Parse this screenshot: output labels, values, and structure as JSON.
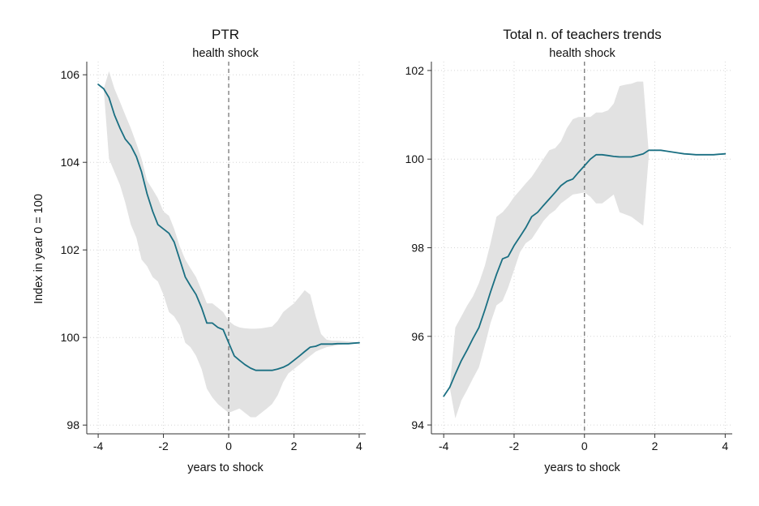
{
  "colors": {
    "series": "#1a6f82",
    "band": "#e2e2e2"
  },
  "chart_data": [
    {
      "type": "line",
      "title": "PTR",
      "subtitle": "health shock",
      "xlabel": "years to shock",
      "ylabel": "Index in year 0 = 100",
      "xlim": [
        -4.35,
        4.2
      ],
      "ylim": [
        97.8,
        106.3
      ],
      "xticks": [
        -4,
        -2,
        0,
        2,
        4
      ],
      "xtick_labels": [
        "-4",
        "-2",
        "0",
        "2",
        "4"
      ],
      "yticks": [
        98,
        100,
        102,
        104,
        106
      ],
      "ytick_labels": [
        "98",
        "100",
        "102",
        "104",
        "106"
      ],
      "reference_x": 0,
      "series": [
        {
          "name": "estimate",
          "x": [
            -4.0,
            -3.83,
            -3.67,
            -3.5,
            -3.33,
            -3.17,
            -3.0,
            -2.83,
            -2.67,
            -2.5,
            -2.33,
            -2.17,
            -2.0,
            -1.83,
            -1.67,
            -1.5,
            -1.33,
            -1.17,
            -1.0,
            -0.83,
            -0.67,
            -0.5,
            -0.33,
            -0.17,
            0.0,
            0.17,
            0.33,
            0.5,
            0.67,
            0.83,
            1.0,
            1.17,
            1.33,
            1.5,
            1.67,
            1.83,
            2.0,
            2.17,
            2.33,
            2.5,
            2.67,
            2.83,
            3.0,
            3.17,
            3.33,
            3.5,
            3.67,
            3.83,
            4.0
          ],
          "y": [
            105.78,
            105.68,
            105.48,
            105.08,
            104.78,
            104.53,
            104.38,
            104.13,
            103.78,
            103.28,
            102.88,
            102.58,
            102.48,
            102.38,
            102.18,
            101.78,
            101.38,
            101.18,
            100.98,
            100.68,
            100.33,
            100.33,
            100.23,
            100.18,
            99.88,
            99.58,
            99.48,
            99.38,
            99.3,
            99.25,
            99.25,
            99.25,
            99.25,
            99.28,
            99.32,
            99.38,
            99.48,
            99.58,
            99.68,
            99.78,
            99.8,
            99.85,
            99.85,
            99.85,
            99.86,
            99.86,
            99.86,
            99.87,
            99.88
          ]
        }
      ],
      "ci_upper": [
        105.78,
        105.68,
        106.08,
        105.68,
        105.38,
        105.08,
        104.78,
        104.43,
        104.08,
        103.58,
        103.38,
        103.18,
        102.88,
        102.78,
        102.48,
        102.08,
        101.78,
        101.58,
        101.38,
        101.08,
        100.78,
        100.78,
        100.68,
        100.58,
        100.38,
        100.28,
        100.23,
        100.21,
        100.2,
        100.2,
        100.21,
        100.23,
        100.25,
        100.38,
        100.58,
        100.68,
        100.78,
        100.93,
        101.08,
        100.98,
        100.48,
        100.08,
        99.95,
        99.93,
        99.93,
        99.92,
        99.91,
        99.9,
        99.88
      ],
      "ci_lower": [
        105.78,
        105.68,
        104.08,
        103.78,
        103.48,
        103.08,
        102.58,
        102.28,
        101.78,
        101.63,
        101.38,
        101.28,
        100.98,
        100.58,
        100.48,
        100.28,
        99.88,
        99.78,
        99.58,
        99.28,
        98.83,
        98.63,
        98.48,
        98.38,
        98.28,
        98.33,
        98.38,
        98.28,
        98.18,
        98.18,
        98.28,
        98.38,
        98.48,
        98.68,
        98.98,
        99.18,
        99.28,
        99.38,
        99.48,
        99.58,
        99.68,
        99.73,
        99.78,
        99.8,
        99.82,
        99.84,
        99.85,
        99.86,
        99.88
      ]
    },
    {
      "type": "line",
      "title": "Total n. of teachers trends",
      "subtitle": "health shock",
      "xlabel": "years to shock",
      "ylabel": "",
      "xlim": [
        -4.35,
        4.2
      ],
      "ylim": [
        93.8,
        102.2
      ],
      "xticks": [
        -4,
        -2,
        0,
        2,
        4
      ],
      "xtick_labels": [
        "-4",
        "-2",
        "0",
        "2",
        "4"
      ],
      "yticks": [
        94,
        96,
        98,
        100,
        102
      ],
      "ytick_labels": [
        "94",
        "96",
        "98",
        "100",
        "102"
      ],
      "reference_x": 0,
      "series": [
        {
          "name": "estimate",
          "x": [
            -4.0,
            -3.83,
            -3.67,
            -3.5,
            -3.33,
            -3.17,
            -3.0,
            -2.83,
            -2.67,
            -2.5,
            -2.33,
            -2.17,
            -2.0,
            -1.83,
            -1.67,
            -1.5,
            -1.33,
            -1.17,
            -1.0,
            -0.83,
            -0.67,
            -0.5,
            -0.33,
            -0.17,
            0.0,
            0.17,
            0.33,
            0.5,
            0.67,
            0.83,
            1.0,
            1.17,
            1.33,
            1.5,
            1.67,
            1.83,
            2.0,
            2.17,
            2.33,
            2.5,
            2.67,
            2.83,
            3.0,
            3.17,
            3.33,
            3.5,
            3.67,
            3.83,
            4.0
          ],
          "y": [
            94.65,
            94.85,
            95.15,
            95.45,
            95.7,
            95.95,
            96.2,
            96.6,
            97.0,
            97.4,
            97.75,
            97.8,
            98.05,
            98.25,
            98.45,
            98.7,
            98.8,
            98.95,
            99.1,
            99.25,
            99.4,
            99.5,
            99.55,
            99.7,
            99.85,
            100.0,
            100.1,
            100.1,
            100.08,
            100.06,
            100.05,
            100.05,
            100.05,
            100.08,
            100.12,
            100.2,
            100.2,
            100.2,
            100.18,
            100.16,
            100.14,
            100.12,
            100.11,
            100.1,
            100.1,
            100.1,
            100.1,
            100.11,
            100.12
          ]
        }
      ],
      "ci_upper": [
        94.65,
        94.85,
        96.2,
        96.45,
        96.7,
        96.9,
        97.2,
        97.6,
        98.1,
        98.7,
        98.8,
        98.95,
        99.15,
        99.3,
        99.45,
        99.6,
        99.8,
        100.0,
        100.2,
        100.25,
        100.4,
        100.7,
        100.9,
        100.95,
        100.95,
        100.95,
        101.05,
        101.05,
        101.1,
        101.25,
        101.65,
        101.68,
        101.7,
        101.75,
        101.75,
        100.1,
        100.12,
        100.12,
        100.12,
        100.12,
        100.12,
        100.12,
        100.12,
        100.12,
        100.12,
        100.12,
        100.12,
        100.12,
        100.12
      ],
      "ci_lower": [
        94.65,
        94.85,
        94.15,
        94.55,
        94.8,
        95.05,
        95.3,
        95.8,
        96.3,
        96.7,
        96.8,
        97.1,
        97.5,
        97.9,
        98.1,
        98.2,
        98.4,
        98.6,
        98.75,
        98.85,
        99.0,
        99.1,
        99.2,
        99.22,
        99.25,
        99.15,
        99.0,
        99.0,
        99.1,
        99.2,
        98.8,
        98.75,
        98.7,
        98.6,
        98.5,
        100.1,
        100.12,
        100.12,
        100.12,
        100.12,
        100.12,
        100.12,
        100.12,
        100.12,
        100.12,
        100.12,
        100.12,
        100.12,
        100.12
      ]
    }
  ]
}
